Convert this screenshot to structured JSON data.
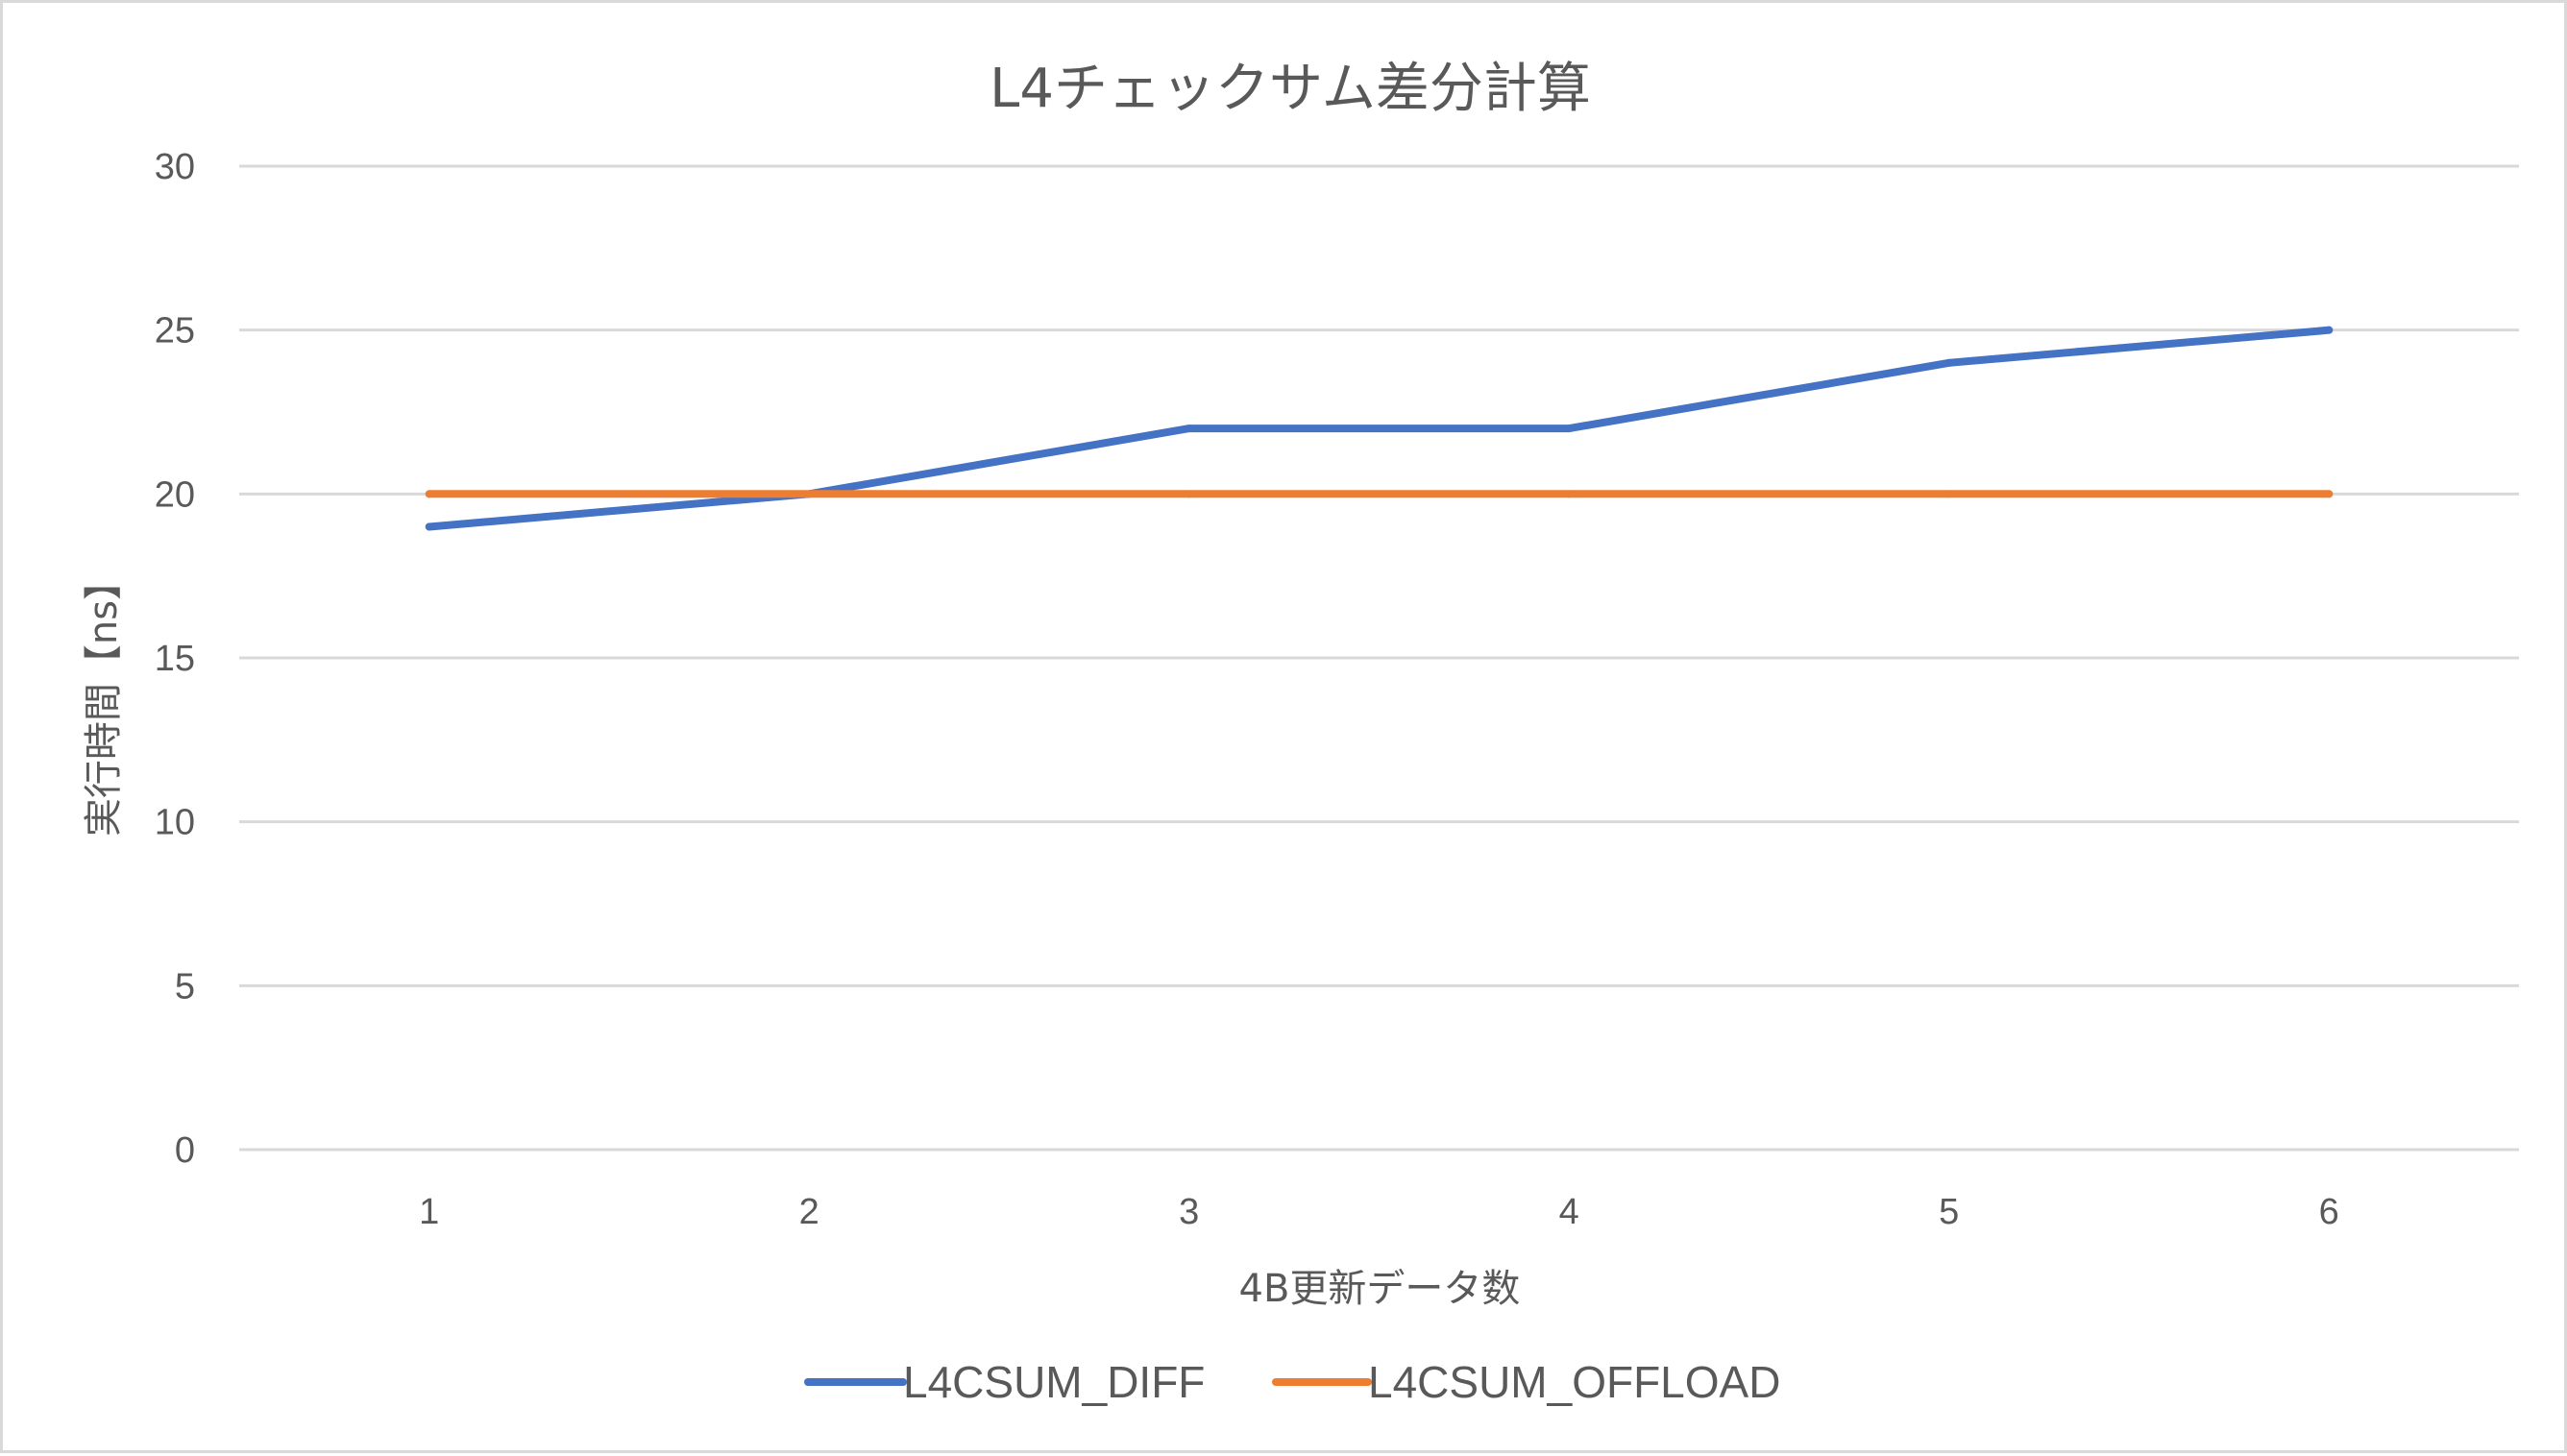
{
  "chart_data": {
    "type": "line",
    "title": "L4チェックサム差分計算",
    "xlabel": "4B更新データ数",
    "ylabel": "実行時間【ns】",
    "categories": [
      "1",
      "2",
      "3",
      "4",
      "5",
      "6"
    ],
    "ylim": [
      0,
      30
    ],
    "yticks": [
      0,
      5,
      10,
      15,
      20,
      25,
      30
    ],
    "grid": true,
    "legend_position": "bottom",
    "series": [
      {
        "name": "L4CSUM_DIFF",
        "color": "#4472c4",
        "values": [
          19,
          20,
          22,
          22,
          24,
          25
        ]
      },
      {
        "name": "L4CSUM_OFFLOAD",
        "color": "#ed7d31",
        "values": [
          20,
          20,
          20,
          20,
          20,
          20
        ]
      }
    ]
  }
}
